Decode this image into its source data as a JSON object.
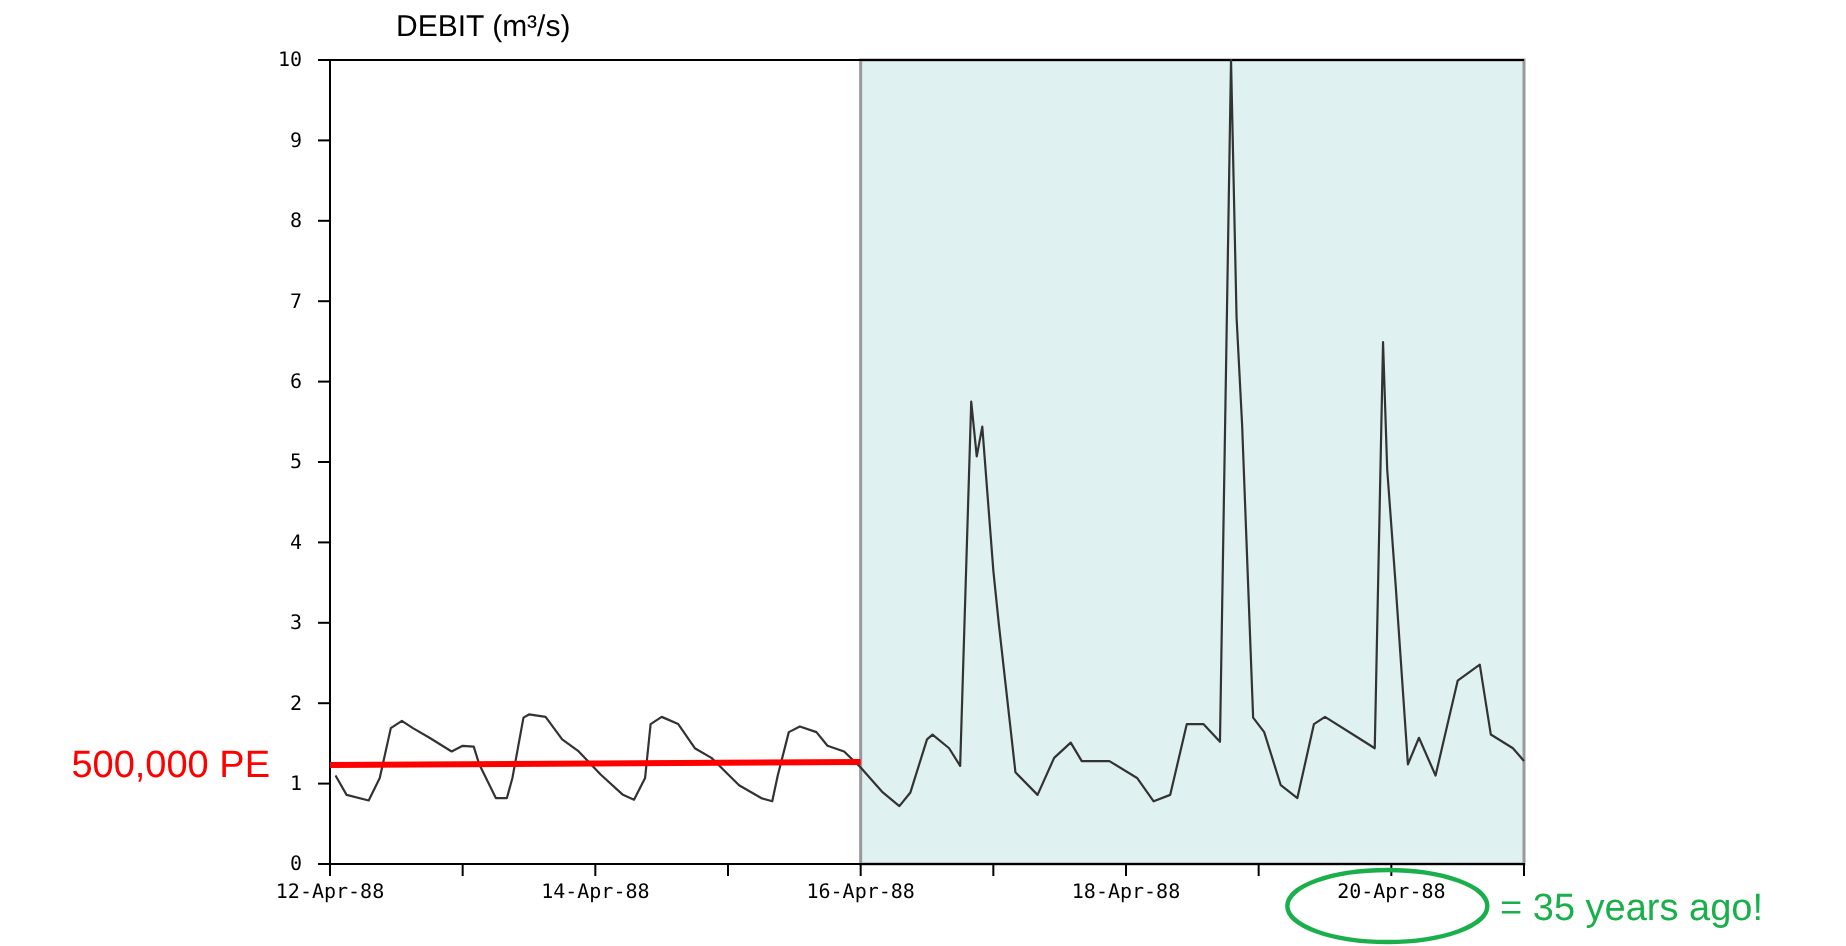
{
  "chart_data": {
    "type": "line",
    "ylabel": "DEBIT (m³/s)",
    "xlim": [
      "1988-04-12T00:00",
      "1988-04-21T00:00"
    ],
    "xticks": [
      {
        "value": "1988-04-12",
        "label": "12-Apr-88"
      },
      {
        "value": "1988-04-13",
        "label": null
      },
      {
        "value": "1988-04-14",
        "label": "14-Apr-88"
      },
      {
        "value": "1988-04-15",
        "label": null
      },
      {
        "value": "1988-04-16",
        "label": "16-Apr-88"
      },
      {
        "value": "1988-04-17",
        "label": null
      },
      {
        "value": "1988-04-18",
        "label": "18-Apr-88"
      },
      {
        "value": "1988-04-19",
        "label": null
      },
      {
        "value": "1988-04-20",
        "label": "20-Apr-88"
      },
      {
        "value": "1988-04-21",
        "label": null
      }
    ],
    "ylim": [
      0,
      10
    ],
    "yticks": [
      0,
      1,
      2,
      3,
      4,
      5,
      6,
      7,
      8,
      9,
      10
    ],
    "grid": false,
    "bands": [
      {
        "axis": "x",
        "from": "1988-04-16T00:00",
        "to": "1988-04-21T00:00",
        "color": "#e0f1f1"
      }
    ],
    "series": [
      {
        "color": "#333333",
        "x": [
          "1988-04-12T01:00",
          "1988-04-12T03:00",
          "1988-04-12T07:00",
          "1988-04-12T09:00",
          "1988-04-12T11:00",
          "1988-04-12T13:00",
          "1988-04-12T15:00",
          "1988-04-12T18:00",
          "1988-04-12T22:00",
          "1988-04-13T00:00",
          "1988-04-13T02:00",
          "1988-04-13T03:00",
          "1988-04-13T06:00",
          "1988-04-13T08:00",
          "1988-04-13T09:00",
          "1988-04-13T11:00",
          "1988-04-13T12:00",
          "1988-04-13T15:00",
          "1988-04-13T18:00",
          "1988-04-13T21:00",
          "1988-04-14T01:00",
          "1988-04-14T05:00",
          "1988-04-14T07:00",
          "1988-04-14T09:00",
          "1988-04-14T10:00",
          "1988-04-14T12:00",
          "1988-04-14T15:00",
          "1988-04-14T18:00",
          "1988-04-14T21:00",
          "1988-04-15T02:00",
          "1988-04-15T06:00",
          "1988-04-15T08:00",
          "1988-04-15T09:00",
          "1988-04-15T11:00",
          "1988-04-15T13:00",
          "1988-04-15T16:00",
          "1988-04-15T18:00",
          "1988-04-15T21:00",
          "1988-04-16T00:00",
          "1988-04-16T04:00",
          "1988-04-16T07:00",
          "1988-04-16T09:00",
          "1988-04-16T12:00",
          "1988-04-16T13:00",
          "1988-04-16T16:00",
          "1988-04-16T18:00",
          "1988-04-16T20:00",
          "1988-04-16T21:00",
          "1988-04-16T22:00",
          "1988-04-17T00:00",
          "1988-04-17T01:00",
          "1988-04-17T04:00",
          "1988-04-17T08:00",
          "1988-04-17T11:00",
          "1988-04-17T14:00",
          "1988-04-17T16:00",
          "1988-04-17T21:00",
          "1988-04-18T02:00",
          "1988-04-18T05:00",
          "1988-04-18T08:00",
          "1988-04-18T11:00",
          "1988-04-18T14:00",
          "1988-04-18T17:00",
          "1988-04-18T19:00",
          "1988-04-18T20:00",
          "1988-04-18T21:00",
          "1988-04-18T23:00",
          "1988-04-19T01:00",
          "1988-04-19T04:00",
          "1988-04-19T07:00",
          "1988-04-19T10:00",
          "1988-04-19T12:00",
          "1988-04-19T18:00",
          "1988-04-19T21:00",
          "1988-04-19T22:30",
          "1988-04-19T23:15",
          "1988-04-20T00:45",
          "1988-04-20T03:00",
          "1988-04-20T05:00",
          "1988-04-20T08:00",
          "1988-04-20T12:00",
          "1988-04-20T16:00",
          "1988-04-20T18:00",
          "1988-04-20T22:00",
          "1988-04-21T00:00"
        ],
        "values": [
          1.1,
          0.86,
          0.79,
          1.07,
          1.69,
          1.78,
          1.69,
          1.57,
          1.4,
          1.47,
          1.46,
          1.24,
          0.82,
          0.82,
          1.07,
          1.82,
          1.86,
          1.83,
          1.55,
          1.4,
          1.11,
          0.86,
          0.8,
          1.07,
          1.74,
          1.83,
          1.74,
          1.44,
          1.32,
          0.98,
          0.82,
          0.78,
          1.1,
          1.64,
          1.71,
          1.64,
          1.47,
          1.4,
          1.2,
          0.89,
          0.72,
          0.89,
          1.55,
          1.61,
          1.44,
          1.22,
          5.75,
          5.07,
          5.44,
          3.65,
          2.98,
          1.14,
          0.86,
          1.32,
          1.51,
          1.28,
          1.28,
          1.07,
          0.78,
          0.86,
          1.74,
          1.74,
          1.52,
          10,
          6.8,
          5.47,
          1.82,
          1.64,
          0.98,
          0.82,
          1.74,
          1.83,
          1.57,
          1.44,
          6.49,
          4.91,
          3.5,
          1.24,
          1.57,
          1.1,
          2.28,
          2.48,
          1.61,
          1.44,
          1.28
        ]
      },
      {
        "name": "500,000 PE",
        "color": "#ff0000",
        "x": [
          "1988-04-12T00:00",
          "1988-04-16T00:00"
        ],
        "values": [
          1.23,
          1.27
        ]
      }
    ],
    "annotations": [
      "= 35 years ago!"
    ]
  }
}
